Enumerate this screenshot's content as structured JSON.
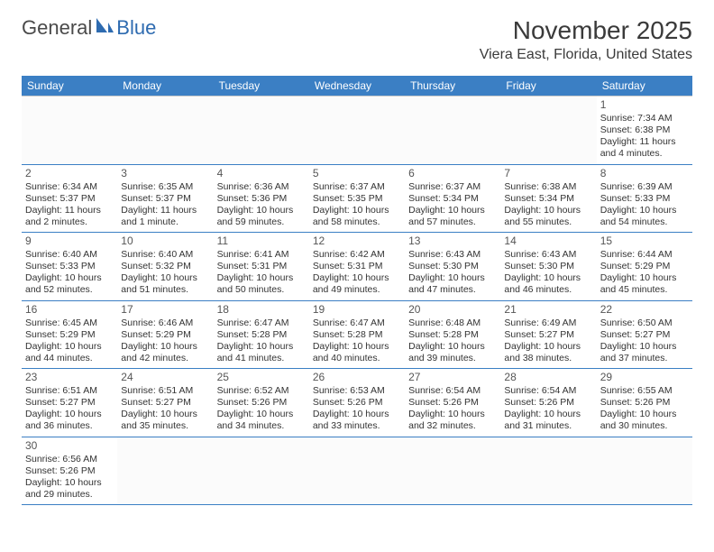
{
  "logo": {
    "part1": "General",
    "part2": "Blue"
  },
  "title": "November 2025",
  "location": "Viera East, Florida, United States",
  "colors": {
    "header_bg": "#3b7fc4",
    "header_text": "#ffffff",
    "grid_line": "#3b7fc4",
    "text": "#333333",
    "daynum": "#555555",
    "logo_text": "#4a4a4a",
    "logo_accent": "#2e6bb0"
  },
  "day_headers": [
    "Sunday",
    "Monday",
    "Tuesday",
    "Wednesday",
    "Thursday",
    "Friday",
    "Saturday"
  ],
  "weeks": [
    [
      {
        "blank": true
      },
      {
        "blank": true
      },
      {
        "blank": true
      },
      {
        "blank": true
      },
      {
        "blank": true
      },
      {
        "blank": true
      },
      {
        "day": "1",
        "sunrise": "Sunrise: 7:34 AM",
        "sunset": "Sunset: 6:38 PM",
        "daylight": "Daylight: 11 hours and 4 minutes."
      }
    ],
    [
      {
        "day": "2",
        "sunrise": "Sunrise: 6:34 AM",
        "sunset": "Sunset: 5:37 PM",
        "daylight": "Daylight: 11 hours and 2 minutes."
      },
      {
        "day": "3",
        "sunrise": "Sunrise: 6:35 AM",
        "sunset": "Sunset: 5:37 PM",
        "daylight": "Daylight: 11 hours and 1 minute."
      },
      {
        "day": "4",
        "sunrise": "Sunrise: 6:36 AM",
        "sunset": "Sunset: 5:36 PM",
        "daylight": "Daylight: 10 hours and 59 minutes."
      },
      {
        "day": "5",
        "sunrise": "Sunrise: 6:37 AM",
        "sunset": "Sunset: 5:35 PM",
        "daylight": "Daylight: 10 hours and 58 minutes."
      },
      {
        "day": "6",
        "sunrise": "Sunrise: 6:37 AM",
        "sunset": "Sunset: 5:34 PM",
        "daylight": "Daylight: 10 hours and 57 minutes."
      },
      {
        "day": "7",
        "sunrise": "Sunrise: 6:38 AM",
        "sunset": "Sunset: 5:34 PM",
        "daylight": "Daylight: 10 hours and 55 minutes."
      },
      {
        "day": "8",
        "sunrise": "Sunrise: 6:39 AM",
        "sunset": "Sunset: 5:33 PM",
        "daylight": "Daylight: 10 hours and 54 minutes."
      }
    ],
    [
      {
        "day": "9",
        "sunrise": "Sunrise: 6:40 AM",
        "sunset": "Sunset: 5:33 PM",
        "daylight": "Daylight: 10 hours and 52 minutes."
      },
      {
        "day": "10",
        "sunrise": "Sunrise: 6:40 AM",
        "sunset": "Sunset: 5:32 PM",
        "daylight": "Daylight: 10 hours and 51 minutes."
      },
      {
        "day": "11",
        "sunrise": "Sunrise: 6:41 AM",
        "sunset": "Sunset: 5:31 PM",
        "daylight": "Daylight: 10 hours and 50 minutes."
      },
      {
        "day": "12",
        "sunrise": "Sunrise: 6:42 AM",
        "sunset": "Sunset: 5:31 PM",
        "daylight": "Daylight: 10 hours and 49 minutes."
      },
      {
        "day": "13",
        "sunrise": "Sunrise: 6:43 AM",
        "sunset": "Sunset: 5:30 PM",
        "daylight": "Daylight: 10 hours and 47 minutes."
      },
      {
        "day": "14",
        "sunrise": "Sunrise: 6:43 AM",
        "sunset": "Sunset: 5:30 PM",
        "daylight": "Daylight: 10 hours and 46 minutes."
      },
      {
        "day": "15",
        "sunrise": "Sunrise: 6:44 AM",
        "sunset": "Sunset: 5:29 PM",
        "daylight": "Daylight: 10 hours and 45 minutes."
      }
    ],
    [
      {
        "day": "16",
        "sunrise": "Sunrise: 6:45 AM",
        "sunset": "Sunset: 5:29 PM",
        "daylight": "Daylight: 10 hours and 44 minutes."
      },
      {
        "day": "17",
        "sunrise": "Sunrise: 6:46 AM",
        "sunset": "Sunset: 5:29 PM",
        "daylight": "Daylight: 10 hours and 42 minutes."
      },
      {
        "day": "18",
        "sunrise": "Sunrise: 6:47 AM",
        "sunset": "Sunset: 5:28 PM",
        "daylight": "Daylight: 10 hours and 41 minutes."
      },
      {
        "day": "19",
        "sunrise": "Sunrise: 6:47 AM",
        "sunset": "Sunset: 5:28 PM",
        "daylight": "Daylight: 10 hours and 40 minutes."
      },
      {
        "day": "20",
        "sunrise": "Sunrise: 6:48 AM",
        "sunset": "Sunset: 5:28 PM",
        "daylight": "Daylight: 10 hours and 39 minutes."
      },
      {
        "day": "21",
        "sunrise": "Sunrise: 6:49 AM",
        "sunset": "Sunset: 5:27 PM",
        "daylight": "Daylight: 10 hours and 38 minutes."
      },
      {
        "day": "22",
        "sunrise": "Sunrise: 6:50 AM",
        "sunset": "Sunset: 5:27 PM",
        "daylight": "Daylight: 10 hours and 37 minutes."
      }
    ],
    [
      {
        "day": "23",
        "sunrise": "Sunrise: 6:51 AM",
        "sunset": "Sunset: 5:27 PM",
        "daylight": "Daylight: 10 hours and 36 minutes."
      },
      {
        "day": "24",
        "sunrise": "Sunrise: 6:51 AM",
        "sunset": "Sunset: 5:27 PM",
        "daylight": "Daylight: 10 hours and 35 minutes."
      },
      {
        "day": "25",
        "sunrise": "Sunrise: 6:52 AM",
        "sunset": "Sunset: 5:26 PM",
        "daylight": "Daylight: 10 hours and 34 minutes."
      },
      {
        "day": "26",
        "sunrise": "Sunrise: 6:53 AM",
        "sunset": "Sunset: 5:26 PM",
        "daylight": "Daylight: 10 hours and 33 minutes."
      },
      {
        "day": "27",
        "sunrise": "Sunrise: 6:54 AM",
        "sunset": "Sunset: 5:26 PM",
        "daylight": "Daylight: 10 hours and 32 minutes."
      },
      {
        "day": "28",
        "sunrise": "Sunrise: 6:54 AM",
        "sunset": "Sunset: 5:26 PM",
        "daylight": "Daylight: 10 hours and 31 minutes."
      },
      {
        "day": "29",
        "sunrise": "Sunrise: 6:55 AM",
        "sunset": "Sunset: 5:26 PM",
        "daylight": "Daylight: 10 hours and 30 minutes."
      }
    ],
    [
      {
        "day": "30",
        "sunrise": "Sunrise: 6:56 AM",
        "sunset": "Sunset: 5:26 PM",
        "daylight": "Daylight: 10 hours and 29 minutes."
      },
      {
        "blank": true
      },
      {
        "blank": true
      },
      {
        "blank": true
      },
      {
        "blank": true
      },
      {
        "blank": true
      },
      {
        "blank": true
      }
    ]
  ]
}
